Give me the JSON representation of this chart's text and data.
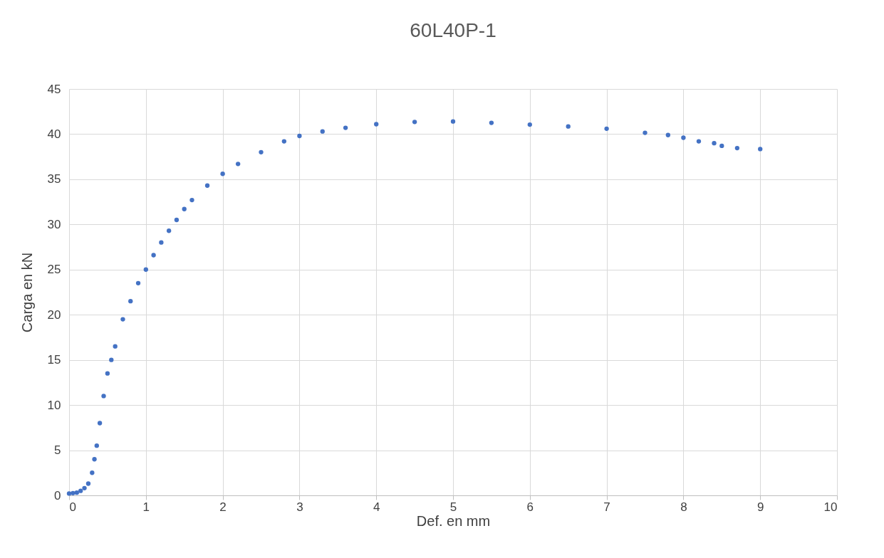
{
  "chart_data": {
    "type": "scatter",
    "title": "60L40P-1",
    "xlabel": "Def. en mm",
    "ylabel": "Carga en kN",
    "xlim": [
      0,
      10
    ],
    "xticks": [
      0,
      1,
      2,
      3,
      4,
      5,
      6,
      7,
      8,
      9,
      10
    ],
    "ylim": [
      0,
      45
    ],
    "yticks": [
      0,
      5,
      10,
      15,
      20,
      25,
      30,
      35,
      40,
      45
    ],
    "grid": true,
    "marker": "circle",
    "series": [
      {
        "color": "#4472c4",
        "x": [
          0,
          0.05,
          0.1,
          0.15,
          0.2,
          0.25,
          0.3,
          0.33,
          0.36,
          0.4,
          0.45,
          0.5,
          0.55,
          0.6,
          0.7,
          0.8,
          0.9,
          1.0,
          1.1,
          1.2,
          1.3,
          1.4,
          1.5,
          1.6,
          1.8,
          2.0,
          2.2,
          2.5,
          2.8,
          3.0,
          3.3,
          3.6,
          4.0,
          4.5,
          5.0,
          5.5,
          6.0,
          6.5,
          7.0,
          7.5,
          7.8,
          8.0,
          8.2,
          8.4,
          8.5,
          8.7,
          9.0
        ],
        "values": [
          0.2,
          0.25,
          0.3,
          0.5,
          0.8,
          1.3,
          2.5,
          4,
          5.5,
          8,
          11,
          13.5,
          15,
          16.5,
          19.5,
          21.5,
          23.5,
          25,
          26.6,
          28,
          29.3,
          30.5,
          31.7,
          32.7,
          34.3,
          35.6,
          36.7,
          38,
          39.2,
          39.8,
          40.3,
          40.7,
          41.1,
          41.35,
          41.4,
          41.25,
          41.05,
          40.85,
          40.6,
          40.15,
          39.9,
          39.6,
          39.2,
          39.0,
          38.7,
          38.45,
          38.35
        ]
      }
    ]
  }
}
